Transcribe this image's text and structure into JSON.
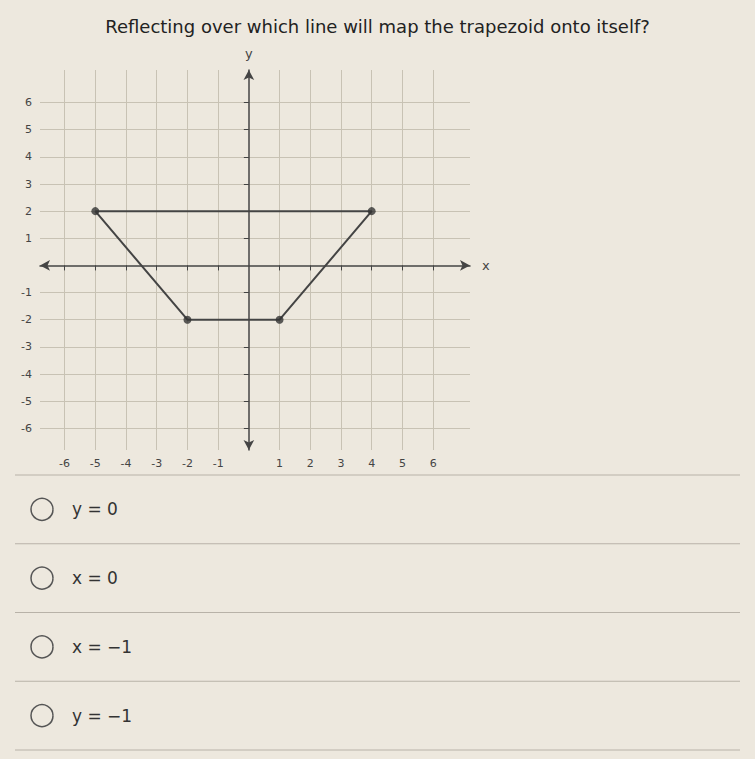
{
  "chart_data": {
    "type": "line",
    "title": "Reflecting over which line will map the trapezoid onto itself?",
    "xlabel": "x",
    "ylabel": "y",
    "series": [
      {
        "type": "line",
        "x": [
          -5,
          4,
          1,
          -2,
          -5
        ],
        "values": [
          2,
          2,
          -2,
          -2,
          2
        ],
        "color": "#444444"
      },
      {
        "type": "scatter",
        "x": [
          -5,
          4,
          1,
          -2
        ],
        "values": [
          2,
          2,
          -2,
          -2
        ],
        "color": "#333333",
        "marker": "circle"
      }
    ],
    "xlim": [
      -6.8,
      7.2
    ],
    "ylim": [
      -6.8,
      7.2
    ],
    "xticks": [
      -6,
      -5,
      -4,
      -3,
      -2,
      -1,
      1,
      2,
      3,
      4,
      5,
      6
    ],
    "yticks": [
      -6,
      -5,
      -4,
      -3,
      -2,
      -1,
      1,
      2,
      3,
      4,
      5,
      6
    ],
    "grid": true,
    "annotations": [
      "y = 0",
      "x = 0",
      "x = −1",
      "y = −1"
    ]
  }
}
